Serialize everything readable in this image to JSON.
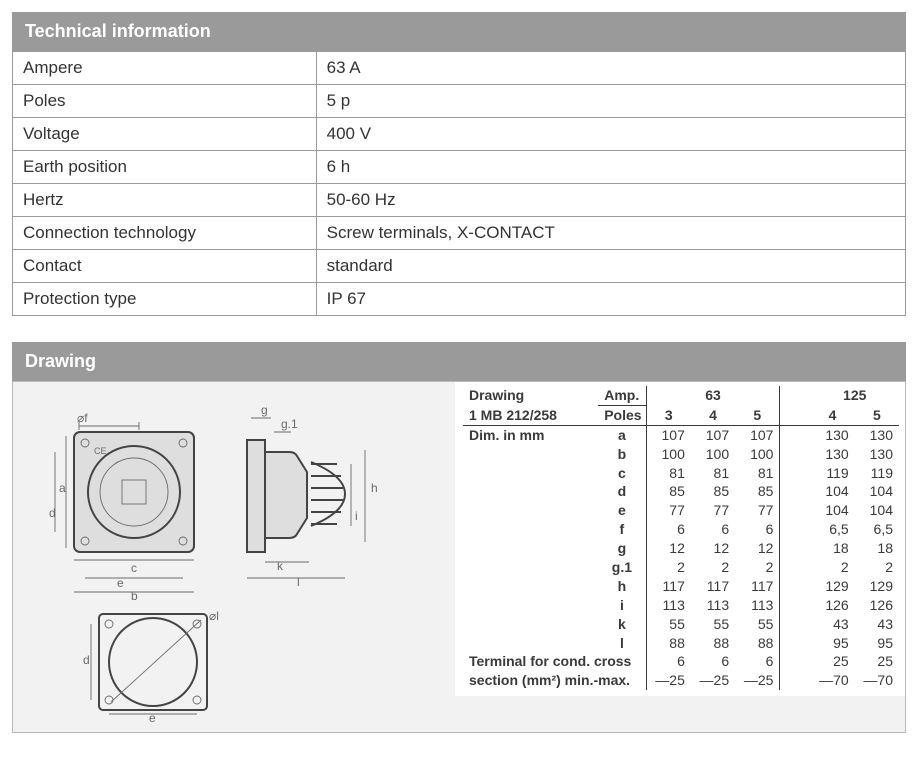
{
  "colors": {
    "header_bg": "#9a9a9a",
    "header_text": "#ffffff",
    "border": "#9a9a9a",
    "panel_bg": "#f2f2f2",
    "text": "#333333",
    "dim_text": "#3a3a3a",
    "diagram_stroke": "#6a6a6a"
  },
  "tech_info": {
    "title": "Technical information",
    "rows": [
      {
        "label": "Ampere",
        "value": "63 A"
      },
      {
        "label": "Poles",
        "value": "5 p"
      },
      {
        "label": "Voltage",
        "value": "400 V"
      },
      {
        "label": "Earth position",
        "value": "6 h"
      },
      {
        "label": "Hertz",
        "value": "50-60 Hz"
      },
      {
        "label": "Connection technology",
        "value": "Screw terminals, X-CONTACT"
      },
      {
        "label": "Contact",
        "value": "standard"
      },
      {
        "label": "Protection type",
        "value": "IP 67"
      }
    ]
  },
  "drawing": {
    "title": "Drawing",
    "header": {
      "drawing_label": "Drawing",
      "drawing_ref": "1 MB 212/258",
      "amp_label": "Amp.",
      "poles_label": "Poles",
      "dim_label": "Dim. in mm",
      "terminal_label_1": "Terminal for cond. cross",
      "terminal_label_2": "section (mm²) min.-max."
    },
    "amp_groups": [
      {
        "amp": "63",
        "poles": [
          "3",
          "4",
          "5"
        ]
      },
      {
        "amp": "125",
        "poles": [
          "4",
          "5"
        ]
      }
    ],
    "dim_keys": [
      "a",
      "b",
      "c",
      "d",
      "e",
      "f",
      "g",
      "g.1",
      "h",
      "i",
      "k",
      "l"
    ],
    "values": {
      "a": {
        "63": {
          "3": "107",
          "4": "107",
          "5": "107"
        },
        "125": {
          "4": "130",
          "5": "130"
        }
      },
      "b": {
        "63": {
          "3": "100",
          "4": "100",
          "5": "100"
        },
        "125": {
          "4": "130",
          "5": "130"
        }
      },
      "c": {
        "63": {
          "3": "81",
          "4": "81",
          "5": "81"
        },
        "125": {
          "4": "119",
          "5": "119"
        }
      },
      "d": {
        "63": {
          "3": "85",
          "4": "85",
          "5": "85"
        },
        "125": {
          "4": "104",
          "5": "104"
        }
      },
      "e": {
        "63": {
          "3": "77",
          "4": "77",
          "5": "77"
        },
        "125": {
          "4": "104",
          "5": "104"
        }
      },
      "f": {
        "63": {
          "3": "6",
          "4": "6",
          "5": "6"
        },
        "125": {
          "4": "6,5",
          "5": "6,5"
        }
      },
      "g": {
        "63": {
          "3": "12",
          "4": "12",
          "5": "12"
        },
        "125": {
          "4": "18",
          "5": "18"
        }
      },
      "g.1": {
        "63": {
          "3": "2",
          "4": "2",
          "5": "2"
        },
        "125": {
          "4": "2",
          "5": "2"
        }
      },
      "h": {
        "63": {
          "3": "117",
          "4": "117",
          "5": "117"
        },
        "125": {
          "4": "129",
          "5": "129"
        }
      },
      "i": {
        "63": {
          "3": "113",
          "4": "113",
          "5": "113"
        },
        "125": {
          "4": "126",
          "5": "126"
        }
      },
      "k": {
        "63": {
          "3": "55",
          "4": "55",
          "5": "55"
        },
        "125": {
          "4": "43",
          "5": "43"
        }
      },
      "l": {
        "63": {
          "3": "88",
          "4": "88",
          "5": "88"
        },
        "125": {
          "4": "95",
          "5": "95"
        }
      }
    },
    "terminal": {
      "min": {
        "63": {
          "3": "6",
          "4": "6",
          "5": "6"
        },
        "125": {
          "4": "25",
          "5": "25"
        }
      },
      "max": {
        "63": {
          "3": "—25",
          "4": "—25",
          "5": "—25"
        },
        "125": {
          "4": "—70",
          "5": "—70"
        }
      }
    },
    "diagram_labels": {
      "phi_f": "⌀f",
      "g": "g",
      "g1": "g.1",
      "a": "a",
      "d": "d",
      "c": "c",
      "e": "e",
      "b": "b",
      "k": "k",
      "l": "l",
      "h": "h",
      "i": "i",
      "phi_l": "⌀l"
    }
  }
}
